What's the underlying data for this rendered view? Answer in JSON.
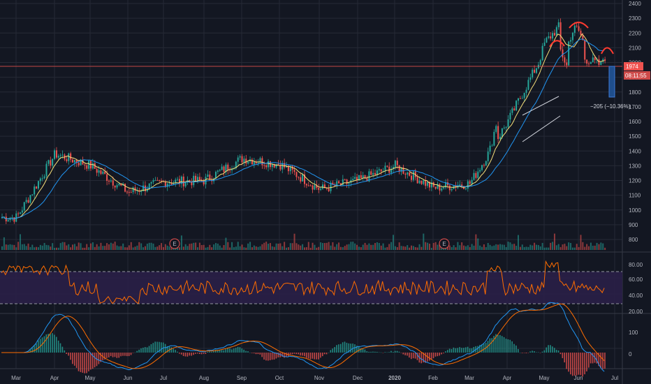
{
  "colors": {
    "background": "#131722",
    "grid": "#262a36",
    "axis_text": "#b2b5be",
    "up": "#26a69a",
    "down": "#ef5350",
    "ma_fast": "#f7e07a",
    "ma_slow": "#2196f3",
    "rsi_line": "#ff6d00",
    "rsi_band": "#2a1f47",
    "macd_line": "#2196f3",
    "signal_line": "#ff6d00",
    "pattern_marks": "#ff3b30",
    "price_line": "#ef5350",
    "measure_bar": "#1f4e8c"
  },
  "price_axis": {
    "ticks": [
      "2400",
      "2300",
      "2200",
      "2100",
      "2000",
      "1900",
      "1800",
      "1700",
      "1600",
      "1500",
      "1400",
      "1300",
      "1200",
      "1100",
      "1000",
      "900",
      "800"
    ],
    "last_price_label": "1974",
    "countdown_label": "08:11:55"
  },
  "rsi_axis": {
    "ticks": [
      "80.00",
      "60.00",
      "40.00",
      "20.00"
    ]
  },
  "macd_axis": {
    "ticks": [
      "100",
      "0"
    ]
  },
  "time_axis": {
    "labels": [
      "Mar",
      "Apr",
      "May",
      "Jun",
      "Jul",
      "Aug",
      "Sep",
      "Oct",
      "Nov",
      "Dec",
      "2020",
      "Feb",
      "Mar",
      "Apr",
      "May",
      "Jun",
      "Jul"
    ]
  },
  "annotations": {
    "measure_label": "−205 (−10.36%)",
    "earnings_marker": "E"
  },
  "chart_data": {
    "type": "candlestick",
    "title": "",
    "ylim": [
      750,
      2400
    ],
    "log_scale": false,
    "last_price": 1974,
    "measured_move": {
      "points": -205,
      "percent": -10.36
    },
    "close_by_month": [
      {
        "month": "Mar",
        "close": 950
      },
      {
        "month": "Apr",
        "close": 1380
      },
      {
        "month": "May",
        "close": 1300
      },
      {
        "month": "Jun",
        "close": 1120
      },
      {
        "month": "Jul",
        "close": 1190
      },
      {
        "month": "Aug",
        "close": 1200
      },
      {
        "month": "Sep",
        "close": 1350
      },
      {
        "month": "Oct",
        "close": 1310
      },
      {
        "month": "Nov",
        "close": 1140
      },
      {
        "month": "Dec",
        "close": 1200
      },
      {
        "month": "2020",
        "close": 1300
      },
      {
        "month": "Feb",
        "close": 1150
      },
      {
        "month": "Mar",
        "close": 1180
      },
      {
        "month": "Apr",
        "close": 1600
      },
      {
        "month": "May",
        "close": 2080
      },
      {
        "month": "Jun",
        "close": 2050
      },
      {
        "month": "Jul",
        "close": 1974
      }
    ],
    "rsi": {
      "upper_band": 70,
      "lower_band": 30
    }
  }
}
